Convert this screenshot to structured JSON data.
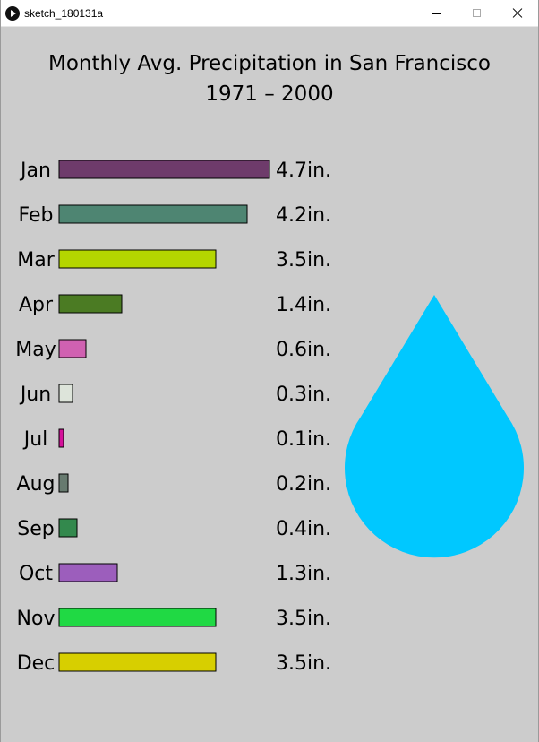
{
  "window": {
    "title": "sketch_180131a",
    "icon": "processing-play-icon"
  },
  "chart_data": {
    "type": "bar",
    "orientation": "horizontal",
    "title": "Monthly Avg. Precipitation in San Francisco",
    "subtitle": "1971 – 2000",
    "xlabel": "",
    "ylabel": "",
    "value_suffix": "in.",
    "grid": false,
    "xlim": [
      0,
      4.7
    ],
    "categories": [
      "Jan",
      "Feb",
      "Mar",
      "Apr",
      "May",
      "Jun",
      "Jul",
      "Aug",
      "Sep",
      "Oct",
      "Nov",
      "Dec"
    ],
    "values": [
      4.7,
      4.2,
      3.5,
      1.4,
      0.6,
      0.3,
      0.1,
      0.2,
      0.4,
      1.3,
      3.5,
      3.5
    ],
    "colors": [
      "#6e3b6b",
      "#4e8572",
      "#b4d600",
      "#4b7b23",
      "#d061b1",
      "#dde4da",
      "#d4119a",
      "#677a6f",
      "#33894d",
      "#9c5ebc",
      "#20d944",
      "#d7cf00"
    ],
    "decoration": {
      "name": "raindrop-icon",
      "color": "#00c8ff"
    }
  }
}
